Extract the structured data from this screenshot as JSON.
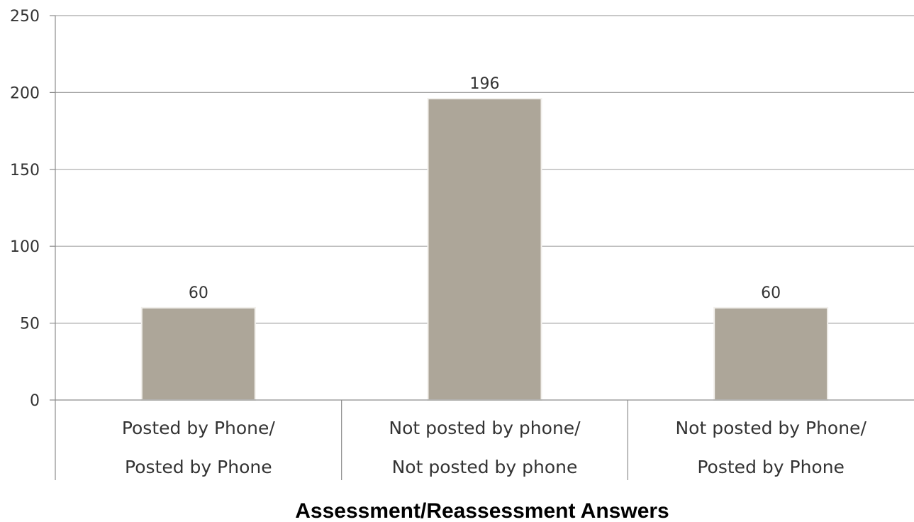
{
  "chart_data": {
    "type": "bar",
    "categories": [
      [
        "Posted by Phone/",
        "Posted by Phone"
      ],
      [
        "Not posted by phone/",
        "Not posted by phone"
      ],
      [
        "Not posted by Phone/",
        "Posted by Phone"
      ]
    ],
    "values": [
      60,
      196,
      60
    ],
    "data_labels": [
      "60",
      "196",
      "60"
    ],
    "xlabel": "Assessment/Reassessment Answers",
    "ylabel": "",
    "ylim": [
      0,
      250
    ],
    "yticks": [
      0,
      50,
      100,
      150,
      200,
      250
    ],
    "grid": true,
    "legend": "none",
    "colors": {
      "bar": "#ADA699",
      "bar_border": "#F2F0EC",
      "grid": "#A6A6A6",
      "axis": "#8C8C8C",
      "text": "#333333"
    }
  }
}
